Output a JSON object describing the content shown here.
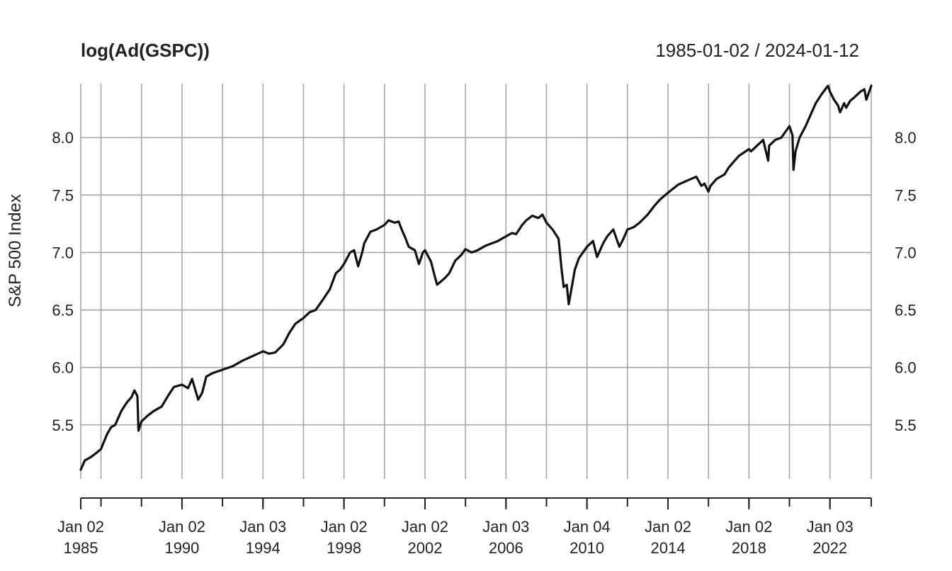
{
  "chart_data": {
    "type": "line",
    "title": "log(Ad(GSPC))",
    "date_range": "1985-01-02 / 2024-01-12",
    "ylabel": "S&P 500 Index",
    "xlabel": "",
    "xlim": [
      1985.0,
      2024.04
    ],
    "ylim": [
      5.03,
      8.47
    ],
    "y_ticks": [
      "5.5",
      "6.0",
      "6.5",
      "7.0",
      "7.5",
      "8.0"
    ],
    "x_ticks": [
      {
        "x": 1985.0,
        "line1": "Jan 02",
        "line2": "1985"
      },
      {
        "x": 1990.0,
        "line1": "Jan 02",
        "line2": "1990"
      },
      {
        "x": 1994.0,
        "line1": "Jan 03",
        "line2": "1994"
      },
      {
        "x": 1998.0,
        "line1": "Jan 02",
        "line2": "1998"
      },
      {
        "x": 2002.0,
        "line1": "Jan 02",
        "line2": "2002"
      },
      {
        "x": 2006.0,
        "line1": "Jan 03",
        "line2": "2006"
      },
      {
        "x": 2010.0,
        "line1": "Jan 04",
        "line2": "2010"
      },
      {
        "x": 2014.0,
        "line1": "Jan 02",
        "line2": "2014"
      },
      {
        "x": 2018.0,
        "line1": "Jan 02",
        "line2": "2018"
      },
      {
        "x": 2022.0,
        "line1": "Jan 03",
        "line2": "2022"
      }
    ],
    "x_gridlines": [
      1985.0,
      1986.0,
      1988.0,
      1990.0,
      1992.0,
      1994.0,
      1996.0,
      1998.0,
      2000.0,
      2002.0,
      2004.0,
      2006.0,
      2008.0,
      2010.0,
      2012.0,
      2014.0,
      2016.0,
      2018.0,
      2020.0,
      2022.0,
      2024.04
    ],
    "series": [
      {
        "name": "log(Ad(GSPC))",
        "x": [
          1985.0,
          1985.2,
          1985.5,
          1985.8,
          1986.0,
          1986.3,
          1986.5,
          1986.7,
          1987.0,
          1987.3,
          1987.5,
          1987.65,
          1987.8,
          1987.85,
          1988.0,
          1988.3,
          1988.6,
          1989.0,
          1989.3,
          1989.6,
          1990.0,
          1990.3,
          1990.5,
          1990.8,
          1991.0,
          1991.2,
          1991.5,
          1992.0,
          1992.5,
          1993.0,
          1993.5,
          1994.0,
          1994.3,
          1994.6,
          1995.0,
          1995.3,
          1995.6,
          1996.0,
          1996.3,
          1996.6,
          1997.0,
          1997.3,
          1997.6,
          1997.8,
          1998.0,
          1998.3,
          1998.5,
          1998.7,
          1998.9,
          1999.0,
          1999.3,
          1999.6,
          2000.0,
          2000.2,
          2000.5,
          2000.7,
          2000.9,
          2001.0,
          2001.2,
          2001.5,
          2001.7,
          2001.9,
          2002.0,
          2002.3,
          2002.5,
          2002.6,
          2002.8,
          2003.0,
          2003.2,
          2003.5,
          2003.8,
          2004.0,
          2004.3,
          2004.6,
          2005.0,
          2005.3,
          2005.6,
          2006.0,
          2006.3,
          2006.5,
          2006.8,
          2007.0,
          2007.3,
          2007.6,
          2007.8,
          2008.0,
          2008.3,
          2008.6,
          2008.75,
          2008.85,
          2009.0,
          2009.1,
          2009.2,
          2009.4,
          2009.6,
          2009.8,
          2010.0,
          2010.3,
          2010.5,
          2010.8,
          2011.0,
          2011.3,
          2011.6,
          2011.8,
          2012.0,
          2012.3,
          2012.6,
          2013.0,
          2013.3,
          2013.6,
          2014.0,
          2014.5,
          2015.0,
          2015.4,
          2015.65,
          2015.8,
          2016.0,
          2016.1,
          2016.4,
          2016.8,
          2017.0,
          2017.5,
          2018.0,
          2018.1,
          2018.4,
          2018.7,
          2018.95,
          2019.0,
          2019.3,
          2019.6,
          2020.0,
          2020.15,
          2020.2,
          2020.3,
          2020.5,
          2020.8,
          2021.0,
          2021.3,
          2021.6,
          2021.9,
          2022.0,
          2022.2,
          2022.4,
          2022.5,
          2022.7,
          2022.8,
          2023.0,
          2023.2,
          2023.5,
          2023.7,
          2023.8,
          2024.04
        ],
        "values": [
          5.11,
          5.19,
          5.22,
          5.26,
          5.29,
          5.42,
          5.48,
          5.5,
          5.62,
          5.7,
          5.74,
          5.8,
          5.75,
          5.45,
          5.53,
          5.58,
          5.62,
          5.66,
          5.75,
          5.83,
          5.85,
          5.82,
          5.9,
          5.72,
          5.78,
          5.92,
          5.95,
          5.98,
          6.01,
          6.06,
          6.1,
          6.14,
          6.12,
          6.13,
          6.2,
          6.3,
          6.38,
          6.43,
          6.48,
          6.5,
          6.6,
          6.68,
          6.82,
          6.85,
          6.9,
          7.0,
          7.02,
          6.88,
          7.0,
          7.08,
          7.18,
          7.2,
          7.24,
          7.28,
          7.26,
          7.27,
          7.18,
          7.14,
          7.05,
          7.02,
          6.9,
          7.0,
          7.02,
          6.92,
          6.78,
          6.72,
          6.75,
          6.78,
          6.82,
          6.93,
          6.98,
          7.03,
          7.0,
          7.02,
          7.06,
          7.08,
          7.1,
          7.14,
          7.17,
          7.16,
          7.24,
          7.28,
          7.32,
          7.3,
          7.33,
          7.26,
          7.2,
          7.12,
          6.85,
          6.7,
          6.72,
          6.55,
          6.65,
          6.85,
          6.95,
          7.0,
          7.05,
          7.1,
          6.96,
          7.08,
          7.14,
          7.2,
          7.05,
          7.12,
          7.2,
          7.22,
          7.26,
          7.33,
          7.4,
          7.46,
          7.52,
          7.59,
          7.63,
          7.66,
          7.58,
          7.6,
          7.53,
          7.58,
          7.64,
          7.68,
          7.74,
          7.84,
          7.9,
          7.88,
          7.93,
          7.98,
          7.8,
          7.93,
          7.98,
          8.0,
          8.1,
          8.02,
          7.72,
          7.88,
          8.0,
          8.1,
          8.18,
          8.3,
          8.38,
          8.45,
          8.4,
          8.33,
          8.28,
          8.22,
          8.3,
          8.26,
          8.32,
          8.35,
          8.4,
          8.42,
          8.33,
          8.45
        ]
      }
    ]
  }
}
